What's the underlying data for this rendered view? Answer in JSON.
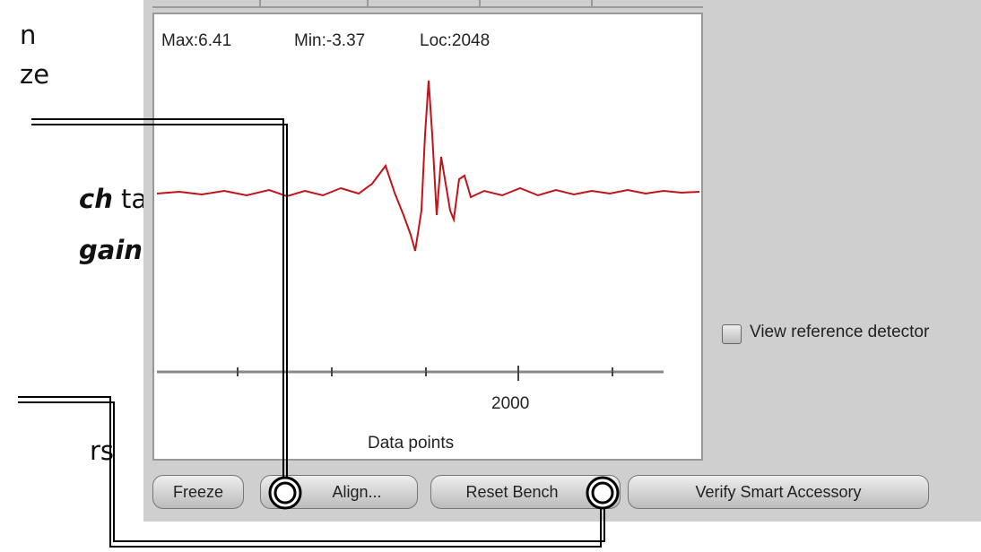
{
  "notes": {
    "line1": "n",
    "line2": "ze",
    "line3_em": "ch",
    "line3_rest": " tab…",
    "line4_em": "gain",
    "line5": "rs"
  },
  "plot": {
    "stats": {
      "max": "Max:6.41",
      "min": "Min:-3.37",
      "loc": "Loc:2048"
    },
    "x_tick": "2000",
    "x_label": "Data points"
  },
  "checkbox": {
    "label": "View reference detector"
  },
  "buttons": {
    "freeze": "Freeze",
    "align": "Align...",
    "reset": "Reset Bench",
    "verify": "Verify Smart Accessory"
  }
}
